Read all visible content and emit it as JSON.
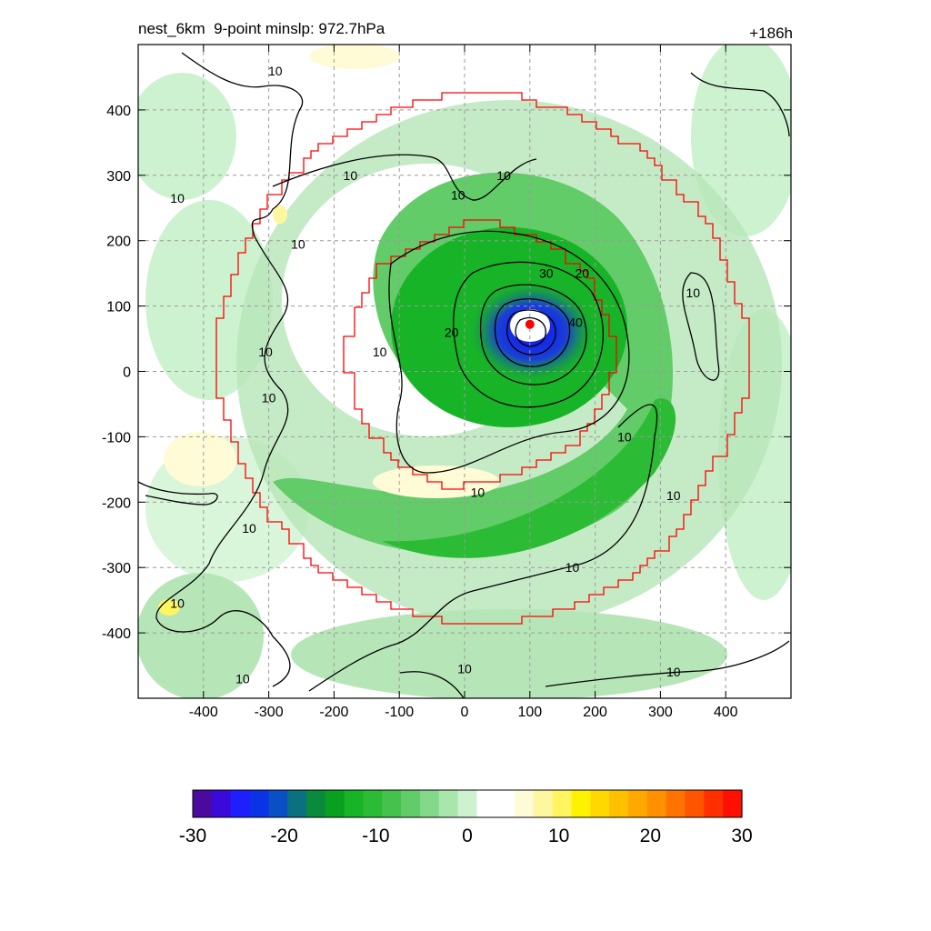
{
  "title": "nest_6km  9-point minslp: 972.7hPa",
  "time_label": "+186h",
  "chart_data": {
    "type": "heatmap",
    "x_ticks": [
      -400,
      -300,
      -200,
      -100,
      0,
      100,
      200,
      300,
      400
    ],
    "y_ticks": [
      400,
      300,
      200,
      100,
      0,
      -100,
      -200,
      -300,
      -400
    ],
    "xlim": [
      -500,
      500
    ],
    "ylim": [
      -500,
      500
    ],
    "grid": true,
    "center": {
      "x": 100,
      "y": 72
    },
    "colorbar": {
      "range": [
        -30,
        30
      ],
      "ticks": [
        -30,
        -20,
        -10,
        0,
        10,
        20,
        30
      ],
      "colors": [
        "#4a0a9e",
        "#3a0ad8",
        "#1e1eff",
        "#0a32e6",
        "#0b4fc4",
        "#0b7080",
        "#0a8a3c",
        "#08a01e",
        "#18b428",
        "#2cbb34",
        "#45c24d",
        "#62cc68",
        "#84d88a",
        "#a8e6ac",
        "#cdf2cf",
        "#ffffff",
        "#ffffff",
        "#fffbd6",
        "#fff7a0",
        "#fff560",
        "#fff200",
        "#ffd800",
        "#ffc000",
        "#ffa800",
        "#ff9000",
        "#ff7400",
        "#ff5400",
        "#ff3000",
        "#ff1000"
      ]
    },
    "contour_labels": [
      {
        "text": "10",
        "x": -290,
        "y": 460
      },
      {
        "text": "10",
        "x": -440,
        "y": 265
      },
      {
        "text": "10",
        "x": -175,
        "y": 300
      },
      {
        "text": "10",
        "x": 60,
        "y": 300
      },
      {
        "text": "10",
        "x": -10,
        "y": 270
      },
      {
        "text": "10",
        "x": -255,
        "y": 195
      },
      {
        "text": "10",
        "x": -305,
        "y": 30
      },
      {
        "text": "10",
        "x": -300,
        "y": -40
      },
      {
        "text": "10",
        "x": -130,
        "y": 30
      },
      {
        "text": "10",
        "x": 350,
        "y": 120
      },
      {
        "text": "10",
        "x": 245,
        "y": -100
      },
      {
        "text": "10",
        "x": 320,
        "y": -190
      },
      {
        "text": "10",
        "x": 20,
        "y": -185
      },
      {
        "text": "10",
        "x": 165,
        "y": -300
      },
      {
        "text": "10",
        "x": -330,
        "y": -240
      },
      {
        "text": "10",
        "x": -440,
        "y": -355
      },
      {
        "text": "10",
        "x": -0.01,
        "y": -455
      },
      {
        "text": "10",
        "x": -340,
        "y": -470
      },
      {
        "text": "10",
        "x": 320,
        "y": -460
      },
      {
        "text": "20",
        "x": -20,
        "y": 60
      },
      {
        "text": "20",
        "x": 180,
        "y": 150
      },
      {
        "text": "30",
        "x": 125,
        "y": 150
      },
      {
        "text": "40",
        "x": 170,
        "y": 75
      }
    ],
    "domain_outline": true
  }
}
